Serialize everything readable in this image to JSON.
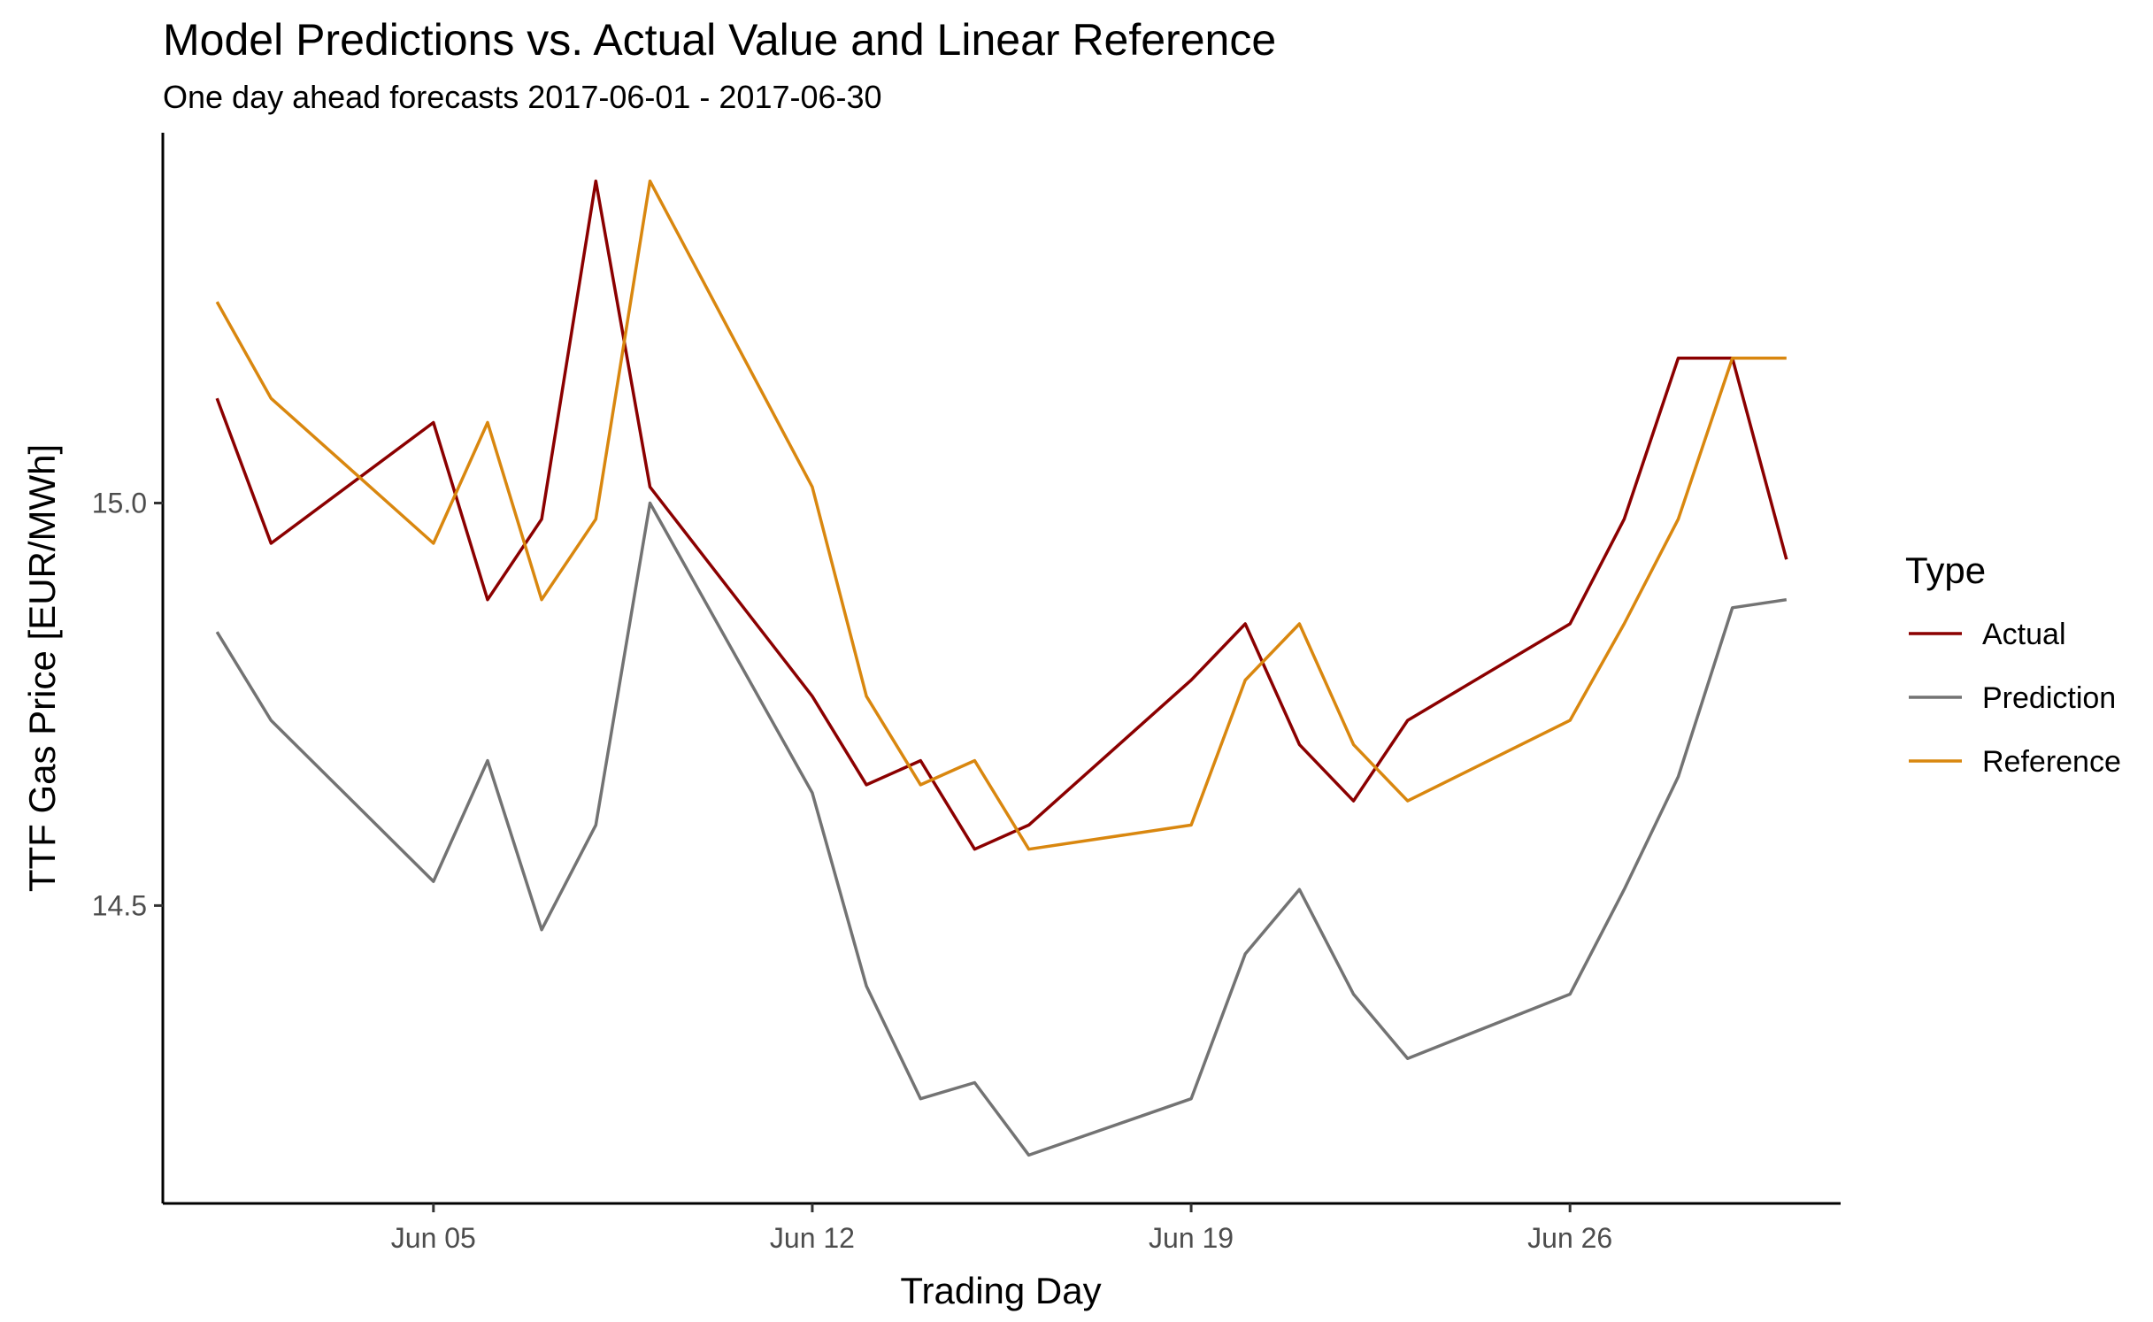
{
  "chart_data": {
    "type": "line",
    "title": "Model Predictions vs. Actual Value and Linear Reference",
    "subtitle": "One day ahead forecasts 2017-06-01 - 2017-06-30",
    "xlabel": "Trading Day",
    "ylabel": "TTF Gas Price [EUR/MWh]",
    "x_ticks": [
      {
        "date": "2017-06-05",
        "label": "Jun 05"
      },
      {
        "date": "2017-06-12",
        "label": "Jun 12"
      },
      {
        "date": "2017-06-19",
        "label": "Jun 19"
      },
      {
        "date": "2017-06-26",
        "label": "Jun 26"
      }
    ],
    "y_ticks": [
      {
        "value": 14.5,
        "label": "14.5"
      },
      {
        "value": 15.0,
        "label": "15.0"
      }
    ],
    "xlim": [
      "2017-05-31",
      "2017-07-01"
    ],
    "ylim": [
      14.13,
      15.46
    ],
    "grid": false,
    "legend": {
      "title": "Type",
      "position": "right"
    },
    "x": [
      "2017-06-01",
      "2017-06-02",
      "2017-06-05",
      "2017-06-06",
      "2017-06-07",
      "2017-06-08",
      "2017-06-09",
      "2017-06-12",
      "2017-06-13",
      "2017-06-14",
      "2017-06-15",
      "2017-06-16",
      "2017-06-19",
      "2017-06-20",
      "2017-06-21",
      "2017-06-22",
      "2017-06-23",
      "2017-06-26",
      "2017-06-27",
      "2017-06-28",
      "2017-06-29",
      "2017-06-30"
    ],
    "series": [
      {
        "name": "Actual",
        "color": "#8b0000",
        "values": [
          15.13,
          14.95,
          15.1,
          14.88,
          14.98,
          15.4,
          15.02,
          14.76,
          14.65,
          14.68,
          14.57,
          14.6,
          14.78,
          14.85,
          14.7,
          14.63,
          14.73,
          14.85,
          14.98,
          15.18,
          15.18,
          14.93
        ]
      },
      {
        "name": "Prediction",
        "color": "#737373",
        "values": [
          14.84,
          14.73,
          14.53,
          14.68,
          14.47,
          14.6,
          15.0,
          14.64,
          14.4,
          14.26,
          14.28,
          14.19,
          14.26,
          14.44,
          14.52,
          14.39,
          14.31,
          14.39,
          14.52,
          14.66,
          14.87,
          14.88
        ]
      },
      {
        "name": "Reference",
        "color": "#d9870f",
        "values": [
          15.25,
          15.13,
          14.95,
          15.1,
          14.88,
          14.98,
          15.4,
          15.02,
          14.76,
          14.65,
          14.68,
          14.57,
          14.6,
          14.78,
          14.85,
          14.7,
          14.63,
          14.73,
          14.85,
          14.98,
          15.18,
          15.18
        ]
      }
    ]
  }
}
